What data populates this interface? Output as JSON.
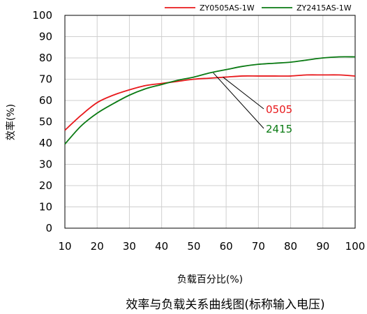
{
  "chart_data": {
    "type": "line",
    "title": "",
    "caption": "效率与负载关系曲线图(标称输入电压)",
    "xlabel": "负载百分比(%)",
    "ylabel": "效率(%)",
    "xlim": [
      10,
      100
    ],
    "ylim": [
      0,
      100
    ],
    "x_ticks": [
      "10",
      "20",
      "30",
      "40",
      "50",
      "60",
      "70",
      "80",
      "90",
      "100"
    ],
    "y_ticks": [
      "0",
      "10",
      "20",
      "30",
      "40",
      "50",
      "60",
      "70",
      "80",
      "90",
      "100"
    ],
    "grid": true,
    "legend_position": "top-right",
    "series": [
      {
        "name": "ZY0505AS-1W",
        "color": "#e8191c",
        "x": [
          10,
          15,
          20,
          25,
          30,
          35,
          40,
          45,
          50,
          55,
          60,
          65,
          70,
          75,
          80,
          85,
          90,
          95,
          100
        ],
        "values": [
          46,
          53,
          59,
          62.5,
          65,
          67,
          68,
          69,
          70,
          70.5,
          71,
          71.5,
          71.5,
          71.5,
          71.5,
          72,
          72,
          72,
          71.5
        ]
      },
      {
        "name": "ZY2415AS-1W",
        "color": "#0a7a13",
        "x": [
          10,
          15,
          20,
          25,
          30,
          35,
          40,
          45,
          50,
          55,
          60,
          65,
          70,
          75,
          80,
          85,
          90,
          95,
          100
        ],
        "values": [
          39.5,
          48,
          54,
          58.5,
          62.5,
          65.5,
          67.5,
          69.5,
          71,
          73,
          74.5,
          76,
          77,
          77.5,
          78,
          79,
          80,
          80.5,
          80.5
        ]
      }
    ],
    "annotations": [
      {
        "text": "0505",
        "color": "#e8191c",
        "points_to": {
          "x": 59,
          "y": 71
        }
      },
      {
        "text": "2415",
        "color": "#0a7a13",
        "points_to": {
          "x": 56,
          "y": 73
        }
      }
    ]
  }
}
